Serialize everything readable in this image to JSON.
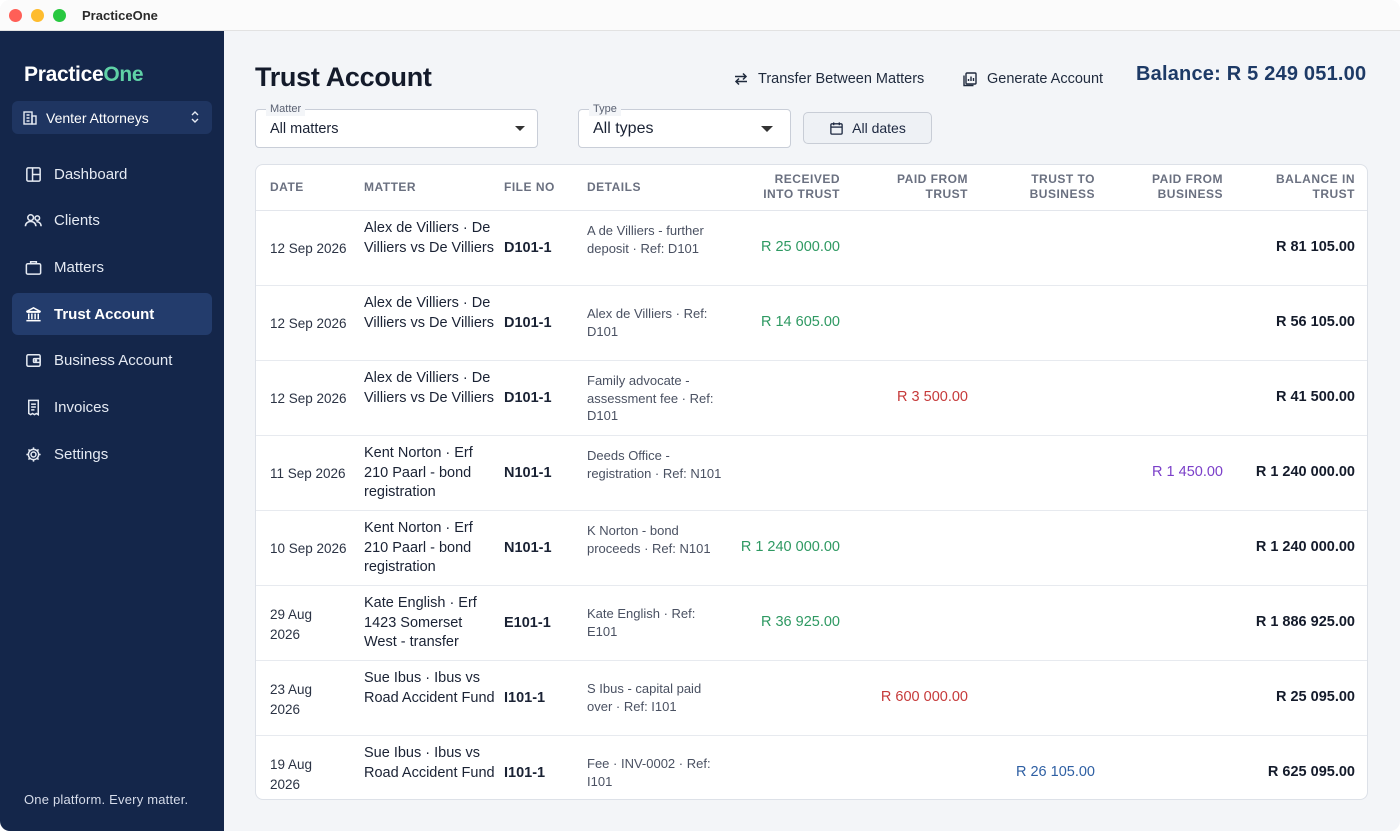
{
  "window": {
    "title": "PracticeOne"
  },
  "sidebar": {
    "brand_main": "Practice",
    "brand_accent": "One",
    "org": "Venter Attorneys",
    "items": [
      {
        "label": "Dashboard",
        "icon": "dashboard-icon"
      },
      {
        "label": "Clients",
        "icon": "users-icon"
      },
      {
        "label": "Matters",
        "icon": "briefcase-icon"
      },
      {
        "label": "Trust Account",
        "icon": "bank-icon",
        "active": true
      },
      {
        "label": "Business Account",
        "icon": "wallet-icon"
      },
      {
        "label": "Invoices",
        "icon": "receipt-icon"
      },
      {
        "label": "Settings",
        "icon": "gear-icon"
      }
    ],
    "tagline": "One platform. Every matter."
  },
  "header": {
    "title": "Trust Account",
    "transfer_label": "Transfer Between Matters",
    "generate_label": "Generate Account",
    "balance": "Balance: R 5 249 051.00"
  },
  "filters": {
    "matter_label": "Matter",
    "matter_value": "All matters",
    "type_label": "Type",
    "type_value": "All types",
    "dates_label": "All dates"
  },
  "table": {
    "columns": {
      "date": "DATE",
      "matter": "MATTER",
      "file_no": "FILE NO",
      "details": "DETAILS",
      "received_1": "RECEIVED",
      "received_2": "INTO TRUST",
      "paidtrust_1": "PAID FROM",
      "paidtrust_2": "TRUST",
      "tobus_1": "TRUST TO",
      "tobus_2": "BUSINESS",
      "paidbus_1": "PAID FROM",
      "paidbus_2": "BUSINESS",
      "balance_1": "BALANCE IN",
      "balance_2": "TRUST"
    },
    "rows": [
      {
        "date": "12 Sep 2026",
        "matter": "Alex de Villiers · De Villiers vs De Villiers",
        "file_no": "D101-1",
        "details": "A de Villiers - further deposit · Ref: D101",
        "received": "R 25 000.00",
        "paid_trust": "",
        "to_business": "",
        "paid_business": "",
        "balance": "R 81 105.00"
      },
      {
        "date": "12 Sep 2026",
        "matter": "Alex de Villiers · De Villiers vs De Villiers",
        "file_no": "D101-1",
        "details": "Alex de Villiers · Ref: D101",
        "received": "R 14 605.00",
        "paid_trust": "",
        "to_business": "",
        "paid_business": "",
        "balance": "R 56 105.00"
      },
      {
        "date": "12 Sep 2026",
        "matter": "Alex de Villiers · De Villiers vs De Villiers",
        "file_no": "D101-1",
        "details": "Family advocate - assessment fee · Ref: D101",
        "received": "",
        "paid_trust": "R 3 500.00",
        "to_business": "",
        "paid_business": "",
        "balance": "R 41 500.00"
      },
      {
        "date": "11 Sep 2026",
        "matter": "Kent Norton · Erf 210 Paarl - bond registration",
        "file_no": "N101-1",
        "details": "Deeds Office - registration · Ref: N101",
        "received": "",
        "paid_trust": "",
        "to_business": "",
        "paid_business": "R 1 450.00",
        "balance": "R 1 240 000.00"
      },
      {
        "date": "10 Sep 2026",
        "matter": "Kent Norton · Erf 210 Paarl - bond registration",
        "file_no": "N101-1",
        "details": "K Norton - bond proceeds · Ref: N101",
        "received": "R 1 240 000.00",
        "paid_trust": "",
        "to_business": "",
        "paid_business": "",
        "balance": "R 1 240 000.00"
      },
      {
        "date": "29 Aug 2026",
        "matter": "Kate English · Erf 1423 Somerset West - transfer",
        "file_no": "E101-1",
        "details": "Kate English · Ref: E101",
        "received": "R 36 925.00",
        "paid_trust": "",
        "to_business": "",
        "paid_business": "",
        "balance": "R 1 886 925.00"
      },
      {
        "date": "23 Aug 2026",
        "matter": "Sue Ibus · Ibus vs Road Accident Fund",
        "file_no": "I101-1",
        "details": "S Ibus - capital paid over · Ref: I101",
        "received": "",
        "paid_trust": "R 600 000.00",
        "to_business": "",
        "paid_business": "",
        "balance": "R 25 095.00"
      },
      {
        "date": "19 Aug 2026",
        "matter": "Sue Ibus · Ibus vs Road Accident Fund",
        "file_no": "I101-1",
        "details": "Fee · INV-0002 · Ref: I101",
        "received": "",
        "paid_trust": "",
        "to_business": "R 26 105.00",
        "paid_business": "",
        "balance": "R 625 095.00"
      }
    ]
  }
}
